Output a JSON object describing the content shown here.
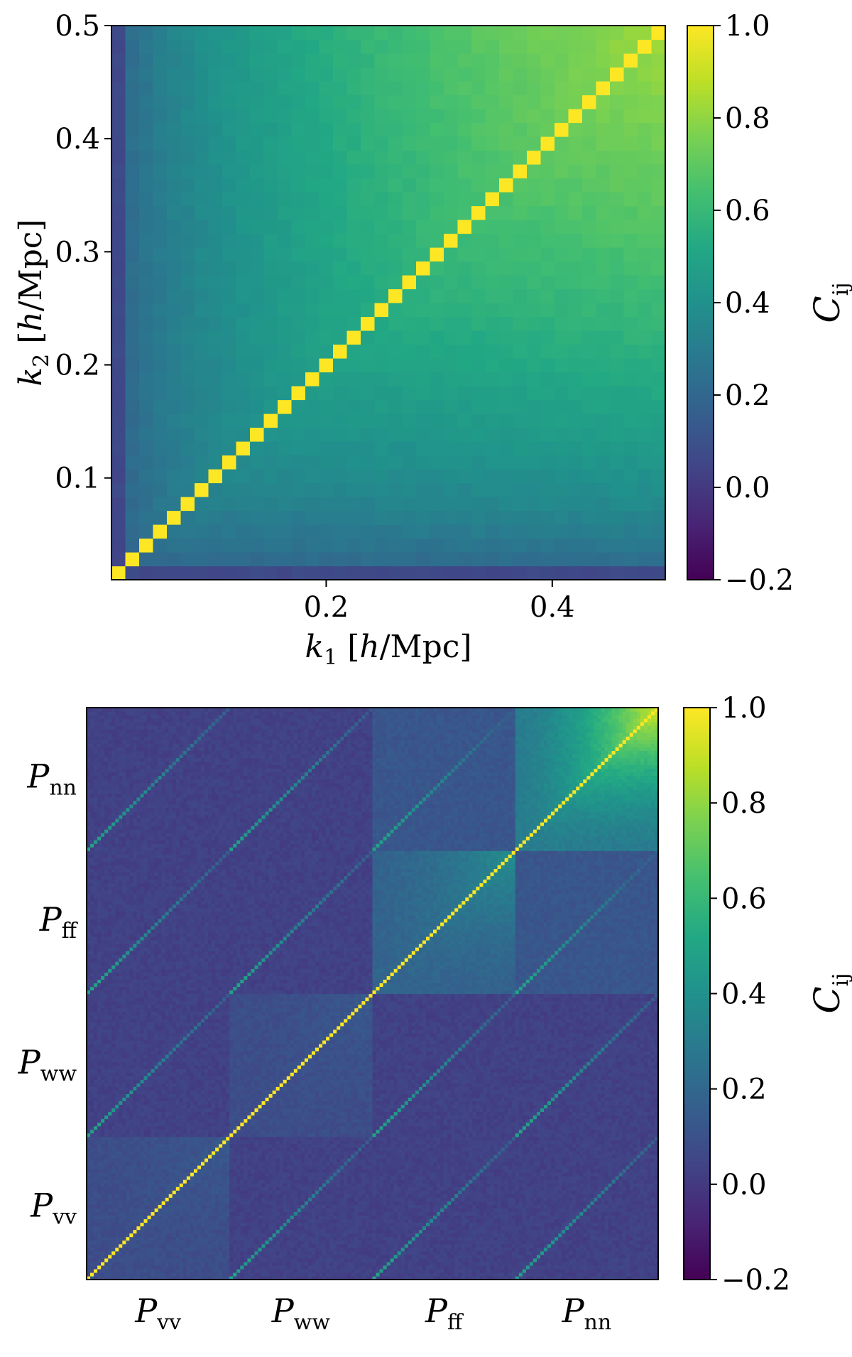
{
  "chart_data": [
    {
      "type": "heatmap",
      "title": "",
      "xlabel": "k1 [h/Mpc]",
      "ylabel": "k2 [h/Mpc]",
      "xlim": [
        0.01,
        0.5
      ],
      "ylim": [
        0.01,
        0.5
      ],
      "n_bins": 40,
      "xticks": [
        0.2,
        0.4
      ],
      "xtick_labels": [
        "0.2",
        "0.4"
      ],
      "yticks": [
        0.1,
        0.2,
        0.3,
        0.4,
        0.5
      ],
      "ytick_labels": [
        "0.1",
        "0.2",
        "0.3",
        "0.4",
        "0.5"
      ],
      "colorbar": {
        "label": "C_ij",
        "range": [
          -0.2,
          1.0
        ],
        "ticks": [
          -0.2,
          0.0,
          0.2,
          0.4,
          0.6,
          0.8,
          1.0
        ],
        "tick_labels": [
          "−0.2",
          "0.0",
          "0.2",
          "0.4",
          "0.6",
          "0.8",
          "1.0"
        ],
        "colormap": "viridis"
      },
      "diagonal_value": 1.0,
      "low_corner_value": 0.15,
      "high_corner_value": 0.82
    },
    {
      "type": "heatmap",
      "title": "",
      "blocks_x": [
        "vv",
        "ww",
        "ff",
        "nn"
      ],
      "blocks_y_top_to_bottom": [
        "nn",
        "ff",
        "ww",
        "vv"
      ],
      "block_symbol": "P",
      "n_bins_per_block": 40,
      "colorbar": {
        "label": "C_ij",
        "range": [
          -0.2,
          1.0
        ],
        "ticks": [
          -0.2,
          0.0,
          0.2,
          0.4,
          0.6,
          0.8,
          1.0
        ],
        "tick_labels": [
          "−0.2",
          "0.0",
          "0.2",
          "0.4",
          "0.6",
          "0.8",
          "1.0"
        ],
        "colormap": "viridis"
      },
      "block_levels": {
        "vv-vv": 0.08,
        "ww-ww": 0.08,
        "ff-ff": 0.18,
        "nn-nn": 0.3,
        "off_diagonal": 0.03,
        "nn-ff": 0.12
      },
      "diagonal_value": 1.0
    }
  ],
  "colors": {
    "viridis_stops": [
      "#440154",
      "#482475",
      "#414487",
      "#355f8d",
      "#2a788e",
      "#21918c",
      "#22a884",
      "#44bf70",
      "#7ad151",
      "#bddf26",
      "#fde725"
    ]
  }
}
